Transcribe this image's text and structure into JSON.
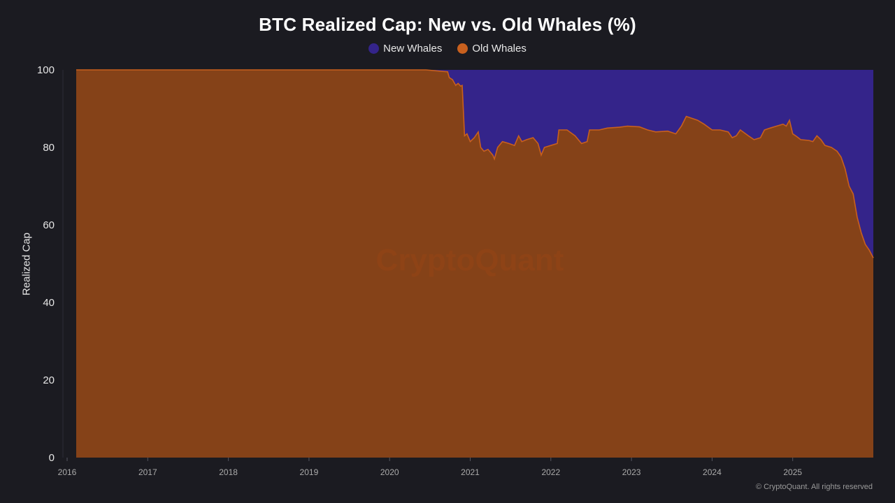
{
  "colors": {
    "background": "#1b1b21",
    "new_whales": "#34248a",
    "old_whales": "#854218",
    "old_whales_line": "#c8601e",
    "axis_text": "#e6e6e6",
    "x_tick_text": "#aaaaaa"
  },
  "watermark": "CryptoQuant",
  "copyright": "© CryptoQuant. All rights reserved",
  "chart_data": {
    "type": "area",
    "title": "BTC Realized Cap: New vs. Old Whales (%)",
    "xlabel": "",
    "ylabel": "Realized Cap",
    "ylim": [
      0,
      100
    ],
    "yticks": [
      "0",
      "20",
      "40",
      "60",
      "80",
      "100"
    ],
    "xticks": [
      "2016",
      "2017",
      "2018",
      "2019",
      "2020",
      "2021",
      "2022",
      "2023",
      "2024",
      "2025"
    ],
    "xlim": [
      2016.0,
      2026.0
    ],
    "stacked": true,
    "legend": "top-center",
    "grid": false,
    "series": [
      {
        "name": "New Whales",
        "color": "#34248a",
        "description": "100 minus Old Whales share"
      },
      {
        "name": "Old Whales",
        "color": "#854218",
        "points": [
          [
            2016.0,
            100
          ],
          [
            2020.45,
            100
          ],
          [
            2020.55,
            99.8
          ],
          [
            2020.72,
            99.5
          ],
          [
            2020.74,
            98
          ],
          [
            2020.78,
            97.5
          ],
          [
            2020.82,
            96
          ],
          [
            2020.85,
            96.5
          ],
          [
            2020.88,
            95.8
          ],
          [
            2020.9,
            96
          ],
          [
            2020.93,
            83
          ],
          [
            2020.96,
            83.5
          ],
          [
            2021.0,
            81.5
          ],
          [
            2021.05,
            82.5
          ],
          [
            2021.1,
            84
          ],
          [
            2021.13,
            80
          ],
          [
            2021.17,
            79
          ],
          [
            2021.22,
            79.5
          ],
          [
            2021.28,
            78
          ],
          [
            2021.3,
            77
          ],
          [
            2021.34,
            80
          ],
          [
            2021.4,
            81.5
          ],
          [
            2021.48,
            81
          ],
          [
            2021.55,
            80.5
          ],
          [
            2021.6,
            83
          ],
          [
            2021.64,
            81.5
          ],
          [
            2021.7,
            82
          ],
          [
            2021.78,
            82.5
          ],
          [
            2021.84,
            81
          ],
          [
            2021.88,
            78
          ],
          [
            2021.92,
            80
          ],
          [
            2022.0,
            80.5
          ],
          [
            2022.08,
            81
          ],
          [
            2022.1,
            84.5
          ],
          [
            2022.2,
            84.5
          ],
          [
            2022.3,
            83
          ],
          [
            2022.38,
            81
          ],
          [
            2022.45,
            81.5
          ],
          [
            2022.48,
            84.5
          ],
          [
            2022.6,
            84.5
          ],
          [
            2022.7,
            85
          ],
          [
            2022.85,
            85.2
          ],
          [
            2022.95,
            85.5
          ],
          [
            2023.1,
            85.3
          ],
          [
            2023.2,
            84.5
          ],
          [
            2023.3,
            84
          ],
          [
            2023.45,
            84.2
          ],
          [
            2023.55,
            83.5
          ],
          [
            2023.62,
            85.5
          ],
          [
            2023.68,
            88
          ],
          [
            2023.75,
            87.5
          ],
          [
            2023.82,
            87
          ],
          [
            2023.9,
            86
          ],
          [
            2024.0,
            84.5
          ],
          [
            2024.1,
            84.5
          ],
          [
            2024.2,
            84
          ],
          [
            2024.25,
            82.5
          ],
          [
            2024.3,
            83
          ],
          [
            2024.35,
            84.5
          ],
          [
            2024.45,
            83
          ],
          [
            2024.52,
            82
          ],
          [
            2024.6,
            82.5
          ],
          [
            2024.65,
            84.5
          ],
          [
            2024.72,
            85
          ],
          [
            2024.8,
            85.5
          ],
          [
            2024.88,
            86
          ],
          [
            2024.92,
            85.5
          ],
          [
            2024.96,
            87
          ],
          [
            2025.0,
            83.5
          ],
          [
            2025.05,
            82.8
          ],
          [
            2025.1,
            82
          ],
          [
            2025.2,
            81.8
          ],
          [
            2025.25,
            81.5
          ],
          [
            2025.3,
            83
          ],
          [
            2025.35,
            82
          ],
          [
            2025.4,
            80.5
          ],
          [
            2025.48,
            80
          ],
          [
            2025.55,
            79
          ],
          [
            2025.6,
            77.5
          ],
          [
            2025.65,
            74.5
          ],
          [
            2025.7,
            70
          ],
          [
            2025.75,
            68
          ],
          [
            2025.8,
            62
          ],
          [
            2025.85,
            58
          ],
          [
            2025.9,
            55
          ],
          [
            2025.95,
            53.5
          ],
          [
            2026.0,
            51.5
          ]
        ]
      }
    ]
  }
}
